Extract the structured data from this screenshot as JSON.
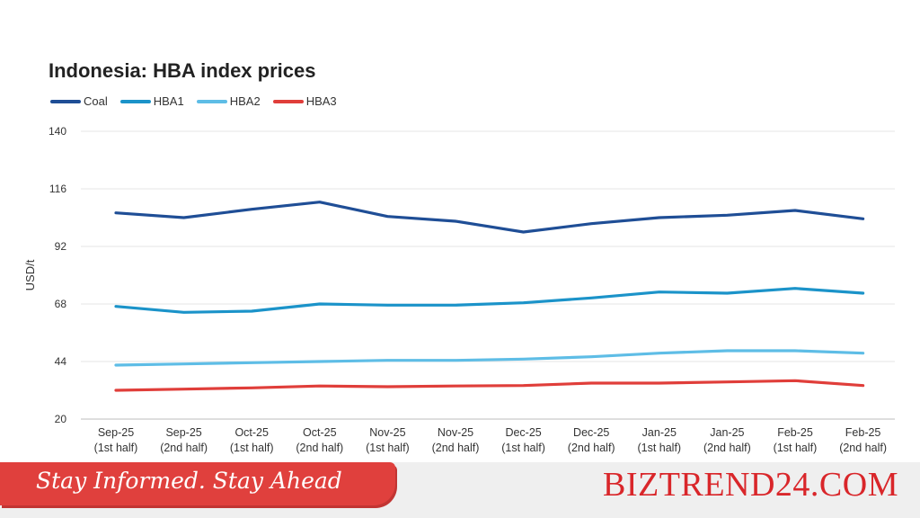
{
  "chart_data": {
    "type": "line",
    "title": "Indonesia: HBA index prices",
    "ylabel": "USD/t",
    "xlabel": "",
    "ylim": [
      20,
      140
    ],
    "yticks": [
      20,
      44,
      68,
      92,
      116,
      140
    ],
    "grid": true,
    "legend_position": "top-left",
    "categories": [
      [
        "Sep-25",
        "(1st half)"
      ],
      [
        "Sep-25",
        "(2nd half)"
      ],
      [
        "Oct-25",
        "(1st half)"
      ],
      [
        "Oct-25",
        "(2nd half)"
      ],
      [
        "Nov-25",
        "(1st half)"
      ],
      [
        "Nov-25",
        "(2nd half)"
      ],
      [
        "Dec-25",
        "(1st half)"
      ],
      [
        "Dec-25",
        "(2nd half)"
      ],
      [
        "Jan-25",
        "(1st half)"
      ],
      [
        "Jan-25",
        "(2nd half)"
      ],
      [
        "Feb-25",
        "(1st half)"
      ],
      [
        "Feb-25",
        "(2nd half)"
      ]
    ],
    "series": [
      {
        "name": "Coal",
        "color": "#1f4e96",
        "values": [
          106,
          104,
          107.5,
          110.5,
          104.5,
          102.5,
          98,
          101.5,
          104,
          105,
          107,
          103.5
        ]
      },
      {
        "name": "HBA1",
        "color": "#1b93c9",
        "values": [
          67,
          64.5,
          65,
          68,
          67.5,
          67.5,
          68.5,
          70.5,
          73,
          72.5,
          74.5,
          72.5
        ]
      },
      {
        "name": "HBA2",
        "color": "#5ebde6",
        "values": [
          42.5,
          43,
          43.5,
          44,
          44.5,
          44.5,
          45,
          46,
          47.5,
          48.5,
          48.5,
          47.5
        ]
      },
      {
        "name": "HBA3",
        "color": "#e03e3a",
        "values": [
          32,
          32.5,
          33,
          33.8,
          33.5,
          33.8,
          34,
          35,
          35,
          35.5,
          36,
          34
        ]
      }
    ]
  },
  "footer": {
    "tagline": "Stay Informed. Stay Ahead",
    "brand": "BIZTREND24.COM"
  }
}
